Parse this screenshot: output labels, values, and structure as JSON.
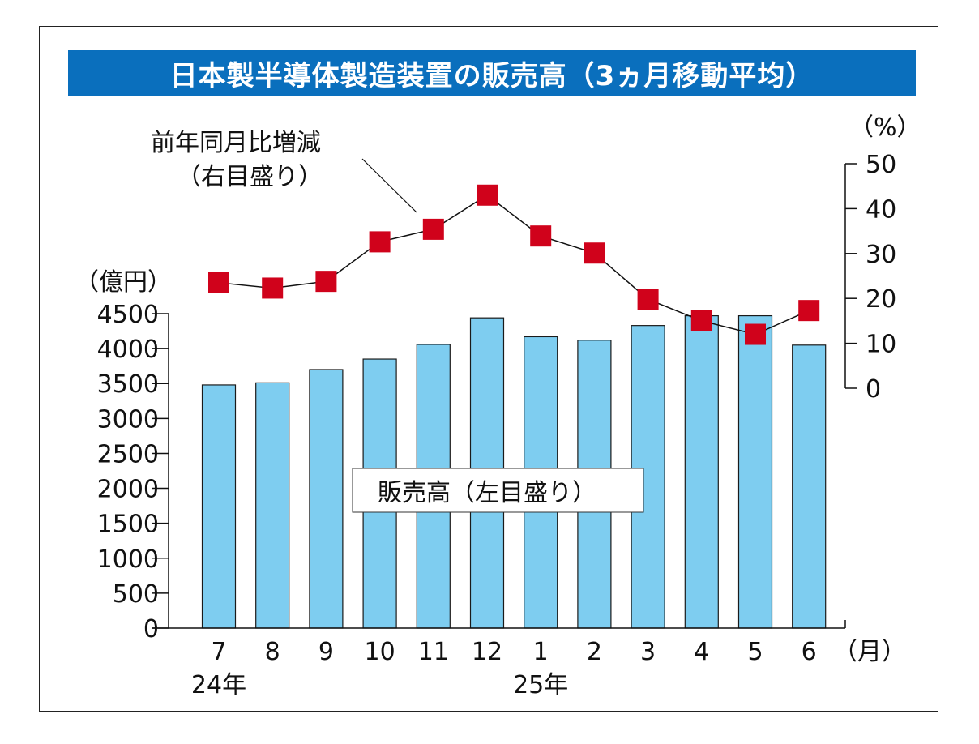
{
  "title": "日本製半導体製造装置の販売高（3ヵ月移動平均）",
  "chart_data": {
    "type": "bar",
    "categories": [
      "7",
      "8",
      "9",
      "10",
      "11",
      "12",
      "1",
      "2",
      "3",
      "4",
      "5",
      "6"
    ],
    "year_labels": [
      {
        "index": 0,
        "text": "24年"
      },
      {
        "index": 6,
        "text": "25年"
      }
    ],
    "x_unit": "（月）",
    "series": [
      {
        "name": "販売高（左目盛り）",
        "type": "bar",
        "axis": "left",
        "color": "#7ecdf0",
        "values": [
          3480,
          3510,
          3700,
          3850,
          4060,
          4440,
          4170,
          4120,
          4330,
          4470,
          4470,
          4050
        ]
      },
      {
        "name": "前年同月比増減（右目盛り）",
        "type": "line",
        "axis": "right",
        "color": "#d0021b",
        "values": [
          23.5,
          22.3,
          23.8,
          32.6,
          35.4,
          43.0,
          33.9,
          30.1,
          19.8,
          15.0,
          12.0,
          17.3
        ]
      }
    ],
    "y_left": {
      "unit": "（億円）",
      "ylim": [
        0,
        4500
      ],
      "ticks": [
        0,
        500,
        1000,
        1500,
        2000,
        2500,
        3000,
        3500,
        4000,
        4500
      ]
    },
    "y_right": {
      "unit": "（%）",
      "ylim": [
        0,
        50
      ],
      "ticks": [
        0,
        10,
        20,
        30,
        40,
        50
      ]
    },
    "annotations": {
      "line_label_1": "前年同月比増減",
      "line_label_2": "（右目盛り）",
      "bar_label": "販売高（左目盛り）"
    }
  }
}
